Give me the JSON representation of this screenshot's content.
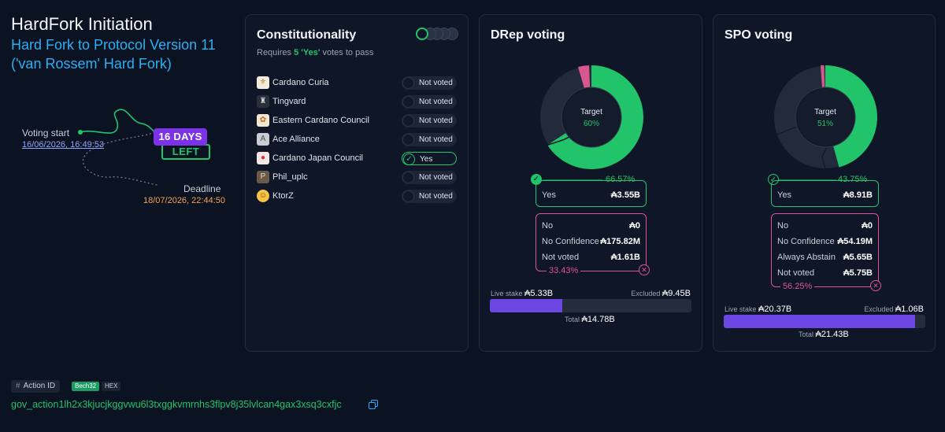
{
  "header": {
    "title": "HardFork Initiation",
    "subtitle": "Hard Fork to Protocol Version 11 ('van Rossem' Hard Fork)"
  },
  "timeline": {
    "start_label": "Voting start",
    "start_date": "16/06/2026, 16:49:53",
    "deadline_label": "Deadline",
    "deadline_date": "18/07/2026, 22:44:50",
    "days_top": "16 DAYS",
    "days_bottom": "LEFT"
  },
  "constitutionality": {
    "title": "Constitutionality",
    "requires_prefix": "Requires ",
    "requires_count": "5 'Yes'",
    "requires_suffix": " votes to pass",
    "progress": {
      "yes_count": 1,
      "total": 5
    },
    "members": [
      {
        "name": "Cardano Curia",
        "vote": "Not voted",
        "icon": "curia-icon"
      },
      {
        "name": "Tingvard",
        "vote": "Not voted",
        "icon": "tingvard-icon"
      },
      {
        "name": "Eastern Cardano Council",
        "vote": "Not voted",
        "icon": "eastern-council-icon"
      },
      {
        "name": "Ace Alliance",
        "vote": "Not voted",
        "icon": "ace-icon"
      },
      {
        "name": "Cardano Japan Council",
        "vote": "Yes",
        "icon": "japan-council-icon"
      },
      {
        "name": "Phil_uplc",
        "vote": "Not voted",
        "icon": "phil-avatar-icon"
      },
      {
        "name": "KtorZ",
        "vote": "Not voted",
        "icon": "ktorz-avatar-icon"
      }
    ]
  },
  "drep": {
    "title": "DRep voting",
    "target_label": "Target",
    "target_value": "60%",
    "yes_pct": "66.57%",
    "yes_label": "Yes",
    "yes_value": "₳3.55B",
    "rows": [
      {
        "label": "No",
        "value": "₳0"
      },
      {
        "label": "No Confidence",
        "value": "₳175.82M"
      },
      {
        "label": "Not voted",
        "value": "₳1.61B"
      }
    ],
    "no_pct": "33.43%",
    "live_stake_label": "Live stake",
    "live_stake": "₳5.33B",
    "excluded_label": "Excluded",
    "excluded": "₳9.45B",
    "total_label": "Total",
    "total": "₳14.78B",
    "bar_fraction": 0.36,
    "colors": {
      "yes": "#22c46a",
      "no": "#e05297",
      "grey": "#232b3b"
    }
  },
  "spo": {
    "title": "SPO voting",
    "target_label": "Target",
    "target_value": "51%",
    "yes_pct": "43.75%",
    "yes_label": "Yes",
    "yes_value": "₳8.91B",
    "rows": [
      {
        "label": "No",
        "value": "₳0"
      },
      {
        "label": "No Confidence",
        "value": "₳54.19M"
      },
      {
        "label": "Always Abstain",
        "value": "₳5.65B"
      },
      {
        "label": "Not voted",
        "value": "₳5.75B"
      }
    ],
    "no_pct": "56.25%",
    "live_stake_label": "Live stake",
    "live_stake": "₳20.37B",
    "excluded_label": "Excluded",
    "excluded": "₳1.06B",
    "total_label": "Total",
    "total": "₳21.43B",
    "bar_fraction": 0.95
  },
  "action": {
    "label": "Action ID",
    "tag_bech": "Bech32",
    "tag_hex": "HEX",
    "id": "gov_action1lh2x3kjucjkggvwu6l3txggkvmrnhs3flpv8j35lvlcan4gax3xsq3cxfjc"
  }
}
